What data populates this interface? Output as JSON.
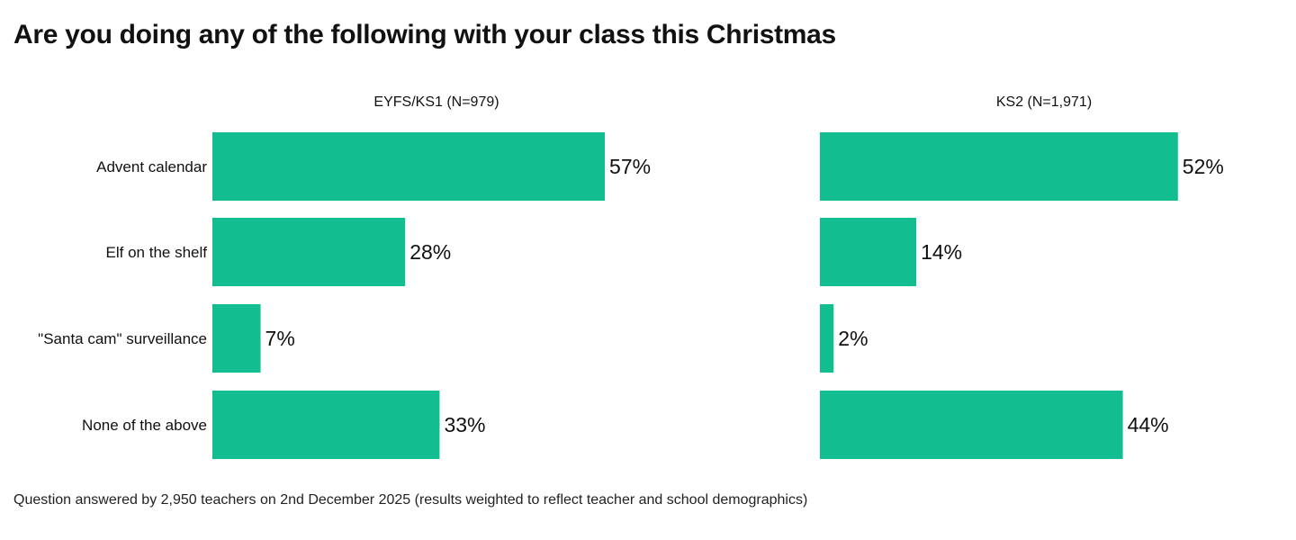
{
  "title": "Are you doing any of the following with your class this Christmas",
  "footnote": "Question answered by 2,950 teachers on 2nd December 2025 (results weighted to reflect teacher and school demographics)",
  "colors": {
    "bar": "#12be8f",
    "text": "#111111"
  },
  "chart_data": [
    {
      "type": "bar",
      "orientation": "horizontal",
      "title": "EYFS/KS1 (N=979)",
      "categories": [
        "Advent calendar",
        "Elf on the shelf",
        "\"Santa cam\" surveillance",
        "None of the above"
      ],
      "values": [
        57,
        28,
        7,
        33
      ],
      "value_labels": [
        "57%",
        "28%",
        "7%",
        "33%"
      ],
      "xlim": [
        0,
        100
      ],
      "grid": false
    },
    {
      "type": "bar",
      "orientation": "horizontal",
      "title": "KS2 (N=1,971)",
      "categories": [
        "Advent calendar",
        "Elf on the shelf",
        "\"Santa cam\" surveillance",
        "None of the above"
      ],
      "values": [
        52,
        14,
        2,
        44
      ],
      "value_labels": [
        "52%",
        "14%",
        "2%",
        "44%"
      ],
      "xlim": [
        0,
        100
      ],
      "grid": false
    }
  ]
}
